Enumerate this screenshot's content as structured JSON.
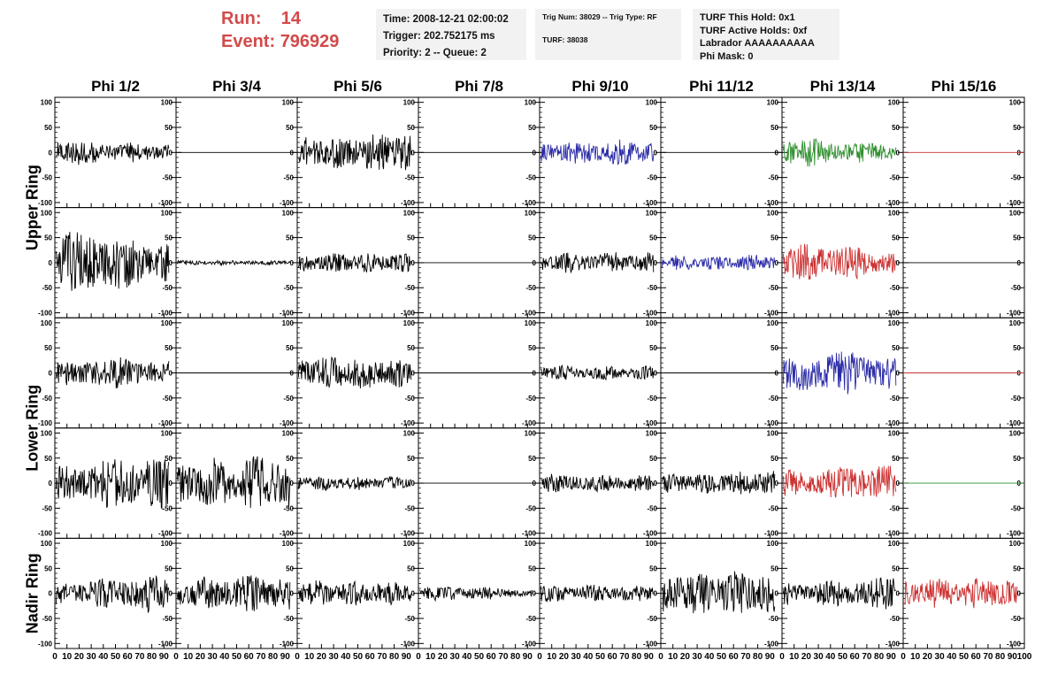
{
  "header": {
    "run_label": "Run:",
    "run_value": "14",
    "event_label": "Event:",
    "event_value": "796929",
    "time_line": "Time: 2008-12-21 02:00:02",
    "trigger_line": "Trigger: 202.752175 ms",
    "priority_line": "Priority: 2 -- Queue: 2",
    "trig_line": "Trig Num: 38029 -- Trig Type: RF",
    "turf_line": "TURF: 38038",
    "hold_line": "TURF This Hold: 0x1",
    "active_holds_line": "TURF Active Holds: 0xf",
    "labrador_line": "Labrador AAAAAAAAAA",
    "phi_mask_line": "Phi Mask: 0"
  },
  "colors": {
    "black": "#000000",
    "blue": "#2b2ba8",
    "green": "#2f8f2f",
    "red": "#cc3030",
    "accent": "#d24a4a"
  },
  "chart_data": {
    "type": "line",
    "columns": [
      "Phi 1/2",
      "Phi 3/4",
      "Phi 5/6",
      "Phi 7/8",
      "Phi 9/10",
      "Phi 11/12",
      "Phi 13/14",
      "Phi 15/16"
    ],
    "rings": [
      {
        "label": "Upper Ring",
        "rows": [
          0,
          1
        ]
      },
      {
        "label": "Lower Ring",
        "rows": [
          2,
          3
        ]
      },
      {
        "label": "Nadir Ring",
        "rows": [
          4
        ]
      }
    ],
    "ylim": [
      -110,
      110
    ],
    "xlim": [
      0,
      100
    ],
    "y_ticks": [
      -100,
      -50,
      0,
      50,
      100
    ],
    "y_tick_labels": [
      "-100",
      "-50",
      "0",
      "50",
      "100"
    ],
    "x_ticks": [
      0,
      10,
      20,
      30,
      40,
      50,
      60,
      70,
      80,
      90,
      100
    ],
    "x_tick_labels": [
      "0",
      "10",
      "20",
      "30",
      "40",
      "50",
      "60",
      "70",
      "80",
      "90",
      "100"
    ],
    "grid": false,
    "panels": [
      [
        {
          "amp": 28,
          "color": "black"
        },
        {
          "amp": 0,
          "color": "black"
        },
        {
          "amp": 40,
          "color": "black"
        },
        {
          "amp": 0,
          "color": "black"
        },
        {
          "amp": 30,
          "color": "blue"
        },
        {
          "amp": 0,
          "color": "black"
        },
        {
          "amp": 30,
          "color": "green"
        },
        {
          "amp": 0,
          "color": "red"
        }
      ],
      [
        {
          "amp": 65,
          "color": "black"
        },
        {
          "amp": 5,
          "color": "black"
        },
        {
          "amp": 20,
          "color": "black"
        },
        {
          "amp": 0,
          "color": "black"
        },
        {
          "amp": 30,
          "color": "black"
        },
        {
          "amp": 22,
          "color": "blue"
        },
        {
          "amp": 38,
          "color": "red"
        },
        {
          "amp": 0,
          "color": "black"
        }
      ],
      [
        {
          "amp": 32,
          "color": "black"
        },
        {
          "amp": 0,
          "color": "black"
        },
        {
          "amp": 35,
          "color": "black"
        },
        {
          "amp": 0,
          "color": "black"
        },
        {
          "amp": 20,
          "color": "black"
        },
        {
          "amp": 0,
          "color": "black"
        },
        {
          "amp": 45,
          "color": "blue"
        },
        {
          "amp": 0,
          "color": "red"
        }
      ],
      [
        {
          "amp": 55,
          "color": "black"
        },
        {
          "amp": 60,
          "color": "black"
        },
        {
          "amp": 18,
          "color": "black"
        },
        {
          "amp": 0,
          "color": "black"
        },
        {
          "amp": 22,
          "color": "black"
        },
        {
          "amp": 25,
          "color": "black"
        },
        {
          "amp": 38,
          "color": "red"
        },
        {
          "amp": 0,
          "color": "green"
        }
      ],
      [
        {
          "amp": 40,
          "color": "black"
        },
        {
          "amp": 50,
          "color": "black"
        },
        {
          "amp": 35,
          "color": "black"
        },
        {
          "amp": 15,
          "color": "black"
        },
        {
          "amp": 18,
          "color": "black"
        },
        {
          "amp": 45,
          "color": "black"
        },
        {
          "amp": 35,
          "color": "black"
        },
        {
          "amp": 45,
          "color": "red"
        }
      ]
    ]
  }
}
